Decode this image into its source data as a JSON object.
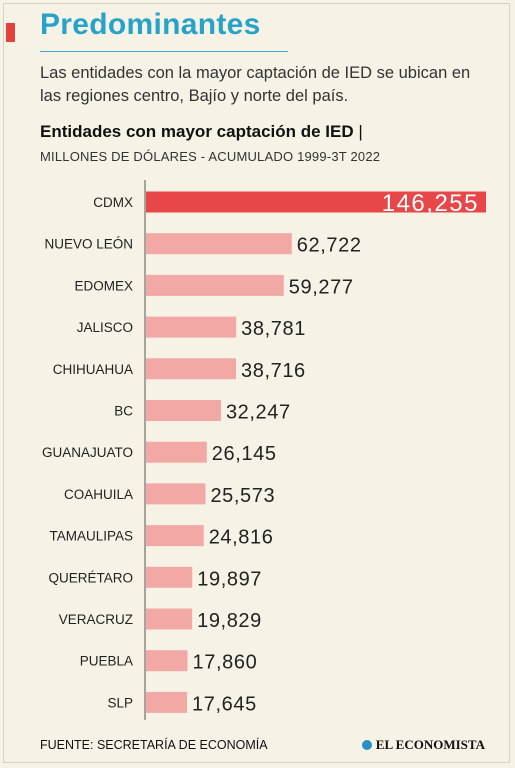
{
  "header": {
    "title": "Predominantes",
    "subtitle": "Las entidades con la mayor captación de IED se ubican en las regiones centro, Bajío y norte del país."
  },
  "chart_data": {
    "type": "bar",
    "orientation": "horizontal",
    "title": "Entidades con mayor captación de IED",
    "title_separator": "|",
    "subtitle": "MILLONES DE DÓLARES - ACUMULADO 1999-3T 2022",
    "categories": [
      "CDMX",
      "NUEVO LEÓN",
      "EDOMEX",
      "JALISCO",
      "CHIHUAHUA",
      "BC",
      "GUANAJUATO",
      "COAHUILA",
      "TAMAULIPAS",
      "QUERÉTARO",
      "VERACRUZ",
      "PUEBLA",
      "SLP"
    ],
    "values": [
      146255,
      62722,
      59277,
      38781,
      38716,
      32247,
      26145,
      25573,
      24816,
      19897,
      19829,
      17860,
      17645
    ],
    "value_labels": [
      "146,255",
      "62,722",
      "59,277",
      "38,781",
      "38,716",
      "32,247",
      "26,145",
      "25,573",
      "24,816",
      "19,897",
      "19,829",
      "17,860",
      "17,645"
    ],
    "xlim": [
      0,
      146255
    ],
    "highlight_color": "#e8474a",
    "bar_color": "#f2a9a5",
    "grid": false,
    "legend": "none"
  },
  "footer": {
    "source": "FUENTE: SECRETARÍA DE ECONOMÍA",
    "brand": "EL ECONOMISTA",
    "brand_icon": "circle-logo-icon"
  }
}
